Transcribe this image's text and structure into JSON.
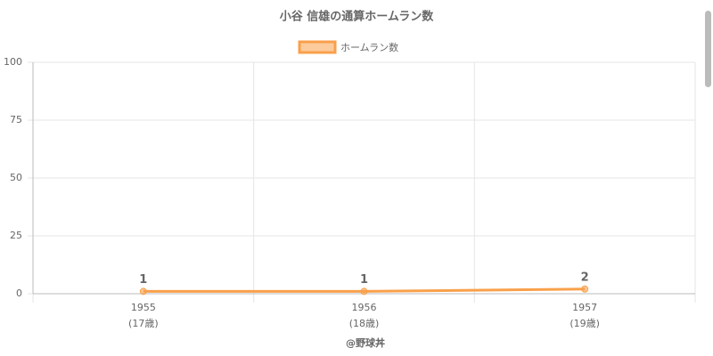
{
  "chart_data": {
    "type": "line",
    "title": "小谷 信雄の通算ホームラン数",
    "categories": [
      "1955",
      "1956",
      "1957"
    ],
    "category_sublabels": [
      "(17歳)",
      "(18歳)",
      "(19歳)"
    ],
    "series": [
      {
        "name": "ホームラン数",
        "color": "#f9a04b",
        "values": [
          1,
          1,
          2
        ]
      }
    ],
    "ylim": [
      0,
      100
    ],
    "yticks": [
      0,
      25,
      50,
      75,
      100
    ],
    "grid": true,
    "legend": "top",
    "footer": "@野球丼"
  }
}
